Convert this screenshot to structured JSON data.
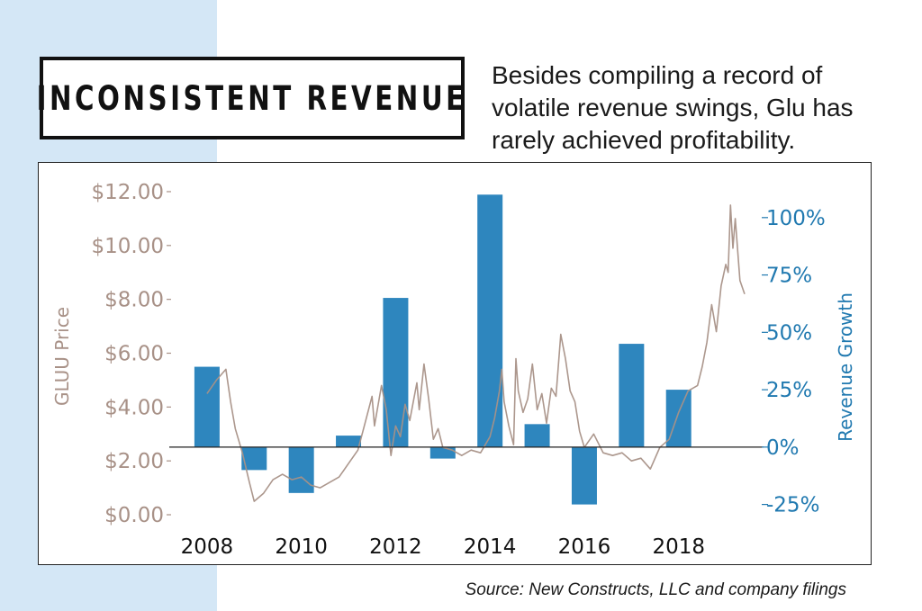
{
  "header": {
    "title": "INCONSISTENT REVENUE",
    "subtitle": "Besides compiling a record of volatile revenue swings, Glu has rarely achieved profitability."
  },
  "source": "Source: New Constructs, LLC and company filings",
  "colors": {
    "price_line": "#a89187",
    "price_axis": "#a89187",
    "bars": "#2e86be",
    "growth_axis": "#2079b0",
    "side_band": "#d4e7f6"
  },
  "chart_data": {
    "type": "bar+line",
    "xlabel": "",
    "x_ticks": [
      "2008",
      "2010",
      "2012",
      "2014",
      "2016",
      "2018"
    ],
    "x_range": [
      2007.2,
      2019.8
    ],
    "left_axis": {
      "label": "GLUU Price",
      "ticks": [
        "$0.00",
        "$2.00",
        "$4.00",
        "$6.00",
        "$8.00",
        "$10.00",
        "$12.00"
      ],
      "range": [
        -0.3,
        12.4
      ]
    },
    "right_axis": {
      "label": "Revenue Growth",
      "ticks": [
        "-25%",
        "0%",
        "25%",
        "50%",
        "75%",
        "100%"
      ],
      "range": [
        -33,
        116
      ]
    },
    "grid": false,
    "series": [
      {
        "name": "Revenue Growth",
        "type": "bar",
        "unit": "%",
        "categories": [
          2008,
          2009,
          2010,
          2011,
          2012,
          2013,
          2014,
          2015,
          2016,
          2017,
          2018
        ],
        "values": [
          35,
          -10,
          -20,
          5,
          65,
          -5,
          110,
          10,
          -25,
          45,
          25
        ]
      },
      {
        "name": "GLUU Price",
        "type": "line",
        "unit": "$",
        "x": [
          2008.0,
          2008.2,
          2008.4,
          2008.5,
          2008.6,
          2008.75,
          2008.9,
          2009.0,
          2009.2,
          2009.4,
          2009.6,
          2009.8,
          2010.0,
          2010.2,
          2010.4,
          2010.6,
          2010.8,
          2011.0,
          2011.2,
          2011.35,
          2011.5,
          2011.55,
          2011.7,
          2011.8,
          2011.9,
          2012.0,
          2012.1,
          2012.2,
          2012.3,
          2012.45,
          2012.5,
          2012.6,
          2012.7,
          2012.8,
          2012.9,
          2013.0,
          2013.2,
          2013.4,
          2013.6,
          2013.8,
          2014.0,
          2014.1,
          2014.2,
          2014.25,
          2014.3,
          2014.4,
          2014.5,
          2014.55,
          2014.6,
          2014.7,
          2014.8,
          2014.9,
          2015.0,
          2015.1,
          2015.2,
          2015.3,
          2015.4,
          2015.5,
          2015.6,
          2015.7,
          2015.8,
          2015.9,
          2016.0,
          2016.2,
          2016.4,
          2016.6,
          2016.8,
          2017.0,
          2017.2,
          2017.4,
          2017.6,
          2017.8,
          2018.0,
          2018.2,
          2018.4,
          2018.5,
          2018.6,
          2018.7,
          2018.8,
          2018.9,
          2019.0,
          2019.05,
          2019.1,
          2019.15,
          2019.2,
          2019.3,
          2019.4
        ],
        "values": [
          4.5,
          5.0,
          5.4,
          4.2,
          3.2,
          2.3,
          1.2,
          0.5,
          0.8,
          1.3,
          1.5,
          1.3,
          1.4,
          1.1,
          1.0,
          1.2,
          1.4,
          1.9,
          2.4,
          3.4,
          4.4,
          3.3,
          4.8,
          3.9,
          2.2,
          3.3,
          2.9,
          4.1,
          3.5,
          4.9,
          3.9,
          5.6,
          4.3,
          2.8,
          3.2,
          2.5,
          2.4,
          2.2,
          2.4,
          2.3,
          2.9,
          3.6,
          4.6,
          5.4,
          4.2,
          3.3,
          2.6,
          5.8,
          4.6,
          3.8,
          4.3,
          5.6,
          3.9,
          4.5,
          3.4,
          4.7,
          4.4,
          6.7,
          5.8,
          4.6,
          4.2,
          3.1,
          2.5,
          3.0,
          2.3,
          2.2,
          2.3,
          2.0,
          2.1,
          1.7,
          2.5,
          2.8,
          3.8,
          4.6,
          4.8,
          5.5,
          6.4,
          7.8,
          6.8,
          8.5,
          9.3,
          9.0,
          11.5,
          9.9,
          11.0,
          8.7,
          8.2
        ]
      }
    ]
  }
}
